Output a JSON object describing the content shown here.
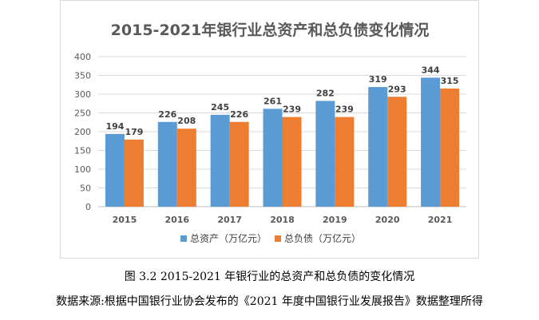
{
  "chart_data": {
    "type": "bar",
    "title": "2015-2021年银行业总资产和总负债变化情况",
    "categories": [
      "2015",
      "2016",
      "2017",
      "2018",
      "2019",
      "2020",
      "2021"
    ],
    "series": [
      {
        "name": "总资产（万亿元）",
        "color": "#5b9bd5",
        "values": [
          194,
          226,
          245,
          261,
          282,
          319,
          344
        ]
      },
      {
        "name": "总负债（万亿元）",
        "color": "#ed7d31",
        "values": [
          179,
          208,
          226,
          239,
          239,
          293,
          315
        ]
      }
    ],
    "ylim": [
      0,
      400
    ],
    "yticks": [
      0,
      50,
      100,
      150,
      200,
      250,
      300,
      350,
      400
    ],
    "grid": true,
    "legend_position": "bottom",
    "xlabel": "",
    "ylabel": ""
  },
  "caption": {
    "figure": "图 3.2    2015-2021 年银行业的总资产和总负债的变化情况",
    "source": "数据来源:根据中国银行业协会发布的《2021 年度中国银行业发展报告》数据整理所得"
  }
}
